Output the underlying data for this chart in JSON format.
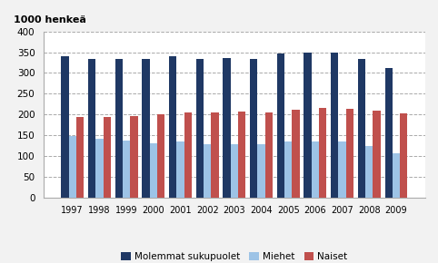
{
  "years": [
    1997,
    1998,
    1999,
    2000,
    2001,
    2002,
    2003,
    2004,
    2005,
    2006,
    2007,
    2008,
    2009
  ],
  "molemmat": [
    340,
    333,
    333,
    333,
    340,
    333,
    337,
    333,
    346,
    349,
    349,
    333,
    311
  ],
  "miehet": [
    147,
    141,
    136,
    131,
    134,
    129,
    129,
    128,
    134,
    134,
    134,
    123,
    107
  ],
  "naiset": [
    194,
    194,
    197,
    201,
    205,
    204,
    207,
    204,
    212,
    215,
    213,
    209,
    202
  ],
  "color_molemmat": "#1f3864",
  "color_miehet": "#9dc3e6",
  "color_naiset": "#c0504d",
  "ylabel": "1000 henkeä",
  "ylim": [
    0,
    400
  ],
  "yticks": [
    0,
    50,
    100,
    150,
    200,
    250,
    300,
    350,
    400
  ],
  "legend_labels": [
    "Molemmat sukupuolet",
    "Miehet",
    "Naiset"
  ],
  "bg_color": "#f2f2f2",
  "plot_bg_color": "#ffffff"
}
